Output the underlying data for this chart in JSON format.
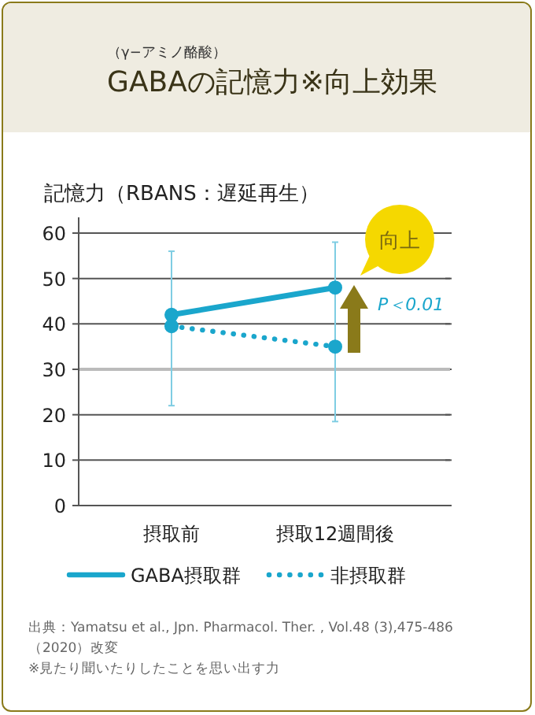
{
  "chart_data": {
    "type": "line",
    "subtitle": "（γ−アミノ酪酸）",
    "title": "GABAの記憶力※向上効果",
    "ylabel": "記憶力（RBANS：遅延再生）",
    "categories": [
      "摂取前",
      "摂取12週間後"
    ],
    "series": [
      {
        "name": "GABA摂取群",
        "color": "#1aa6cc",
        "values": [
          42,
          48
        ],
        "line_style": "solid",
        "errors": [
          [
            22,
            56
          ],
          [
            18.5,
            58
          ]
        ]
      },
      {
        "name": "非摂取群",
        "color": "#1aa6cc",
        "values": [
          39.5,
          35
        ],
        "line_style": "dotted"
      }
    ],
    "ref_lines": [
      {
        "axis": "y",
        "value": 30,
        "color": "#bbbbbb"
      }
    ],
    "ylim": [
      0,
      60
    ],
    "yticks": [
      0,
      10,
      20,
      30,
      40,
      50,
      60
    ],
    "grid": "y",
    "marker": "circle",
    "legend": "bottom",
    "annotations": [
      "向上",
      "P＜0.01",
      "出典：Yamatsu et al., Jpn. Pharmacol. Ther. , Vol.48 (3),475-486（2020）改変",
      "※見たり聞いたりしたことを思い出す力"
    ]
  }
}
